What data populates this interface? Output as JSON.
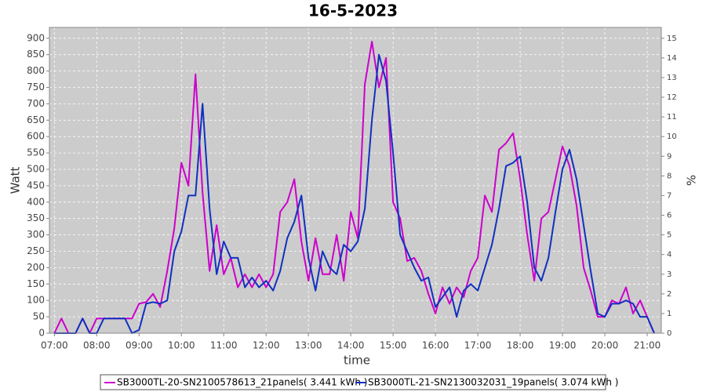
{
  "chart_data": {
    "type": "line",
    "title": "16-5-2023",
    "xlabel": "time",
    "ylabel": "Watt",
    "y2label": "%",
    "x": [
      420,
      430,
      440,
      450,
      460,
      470,
      480,
      490,
      500,
      510,
      520,
      530,
      540,
      550,
      560,
      570,
      580,
      590,
      600,
      610,
      620,
      630,
      640,
      650,
      660,
      670,
      680,
      690,
      700,
      710,
      720,
      730,
      740,
      750,
      760,
      770,
      780,
      790,
      800,
      810,
      820,
      830,
      840,
      850,
      860,
      870,
      880,
      890,
      900,
      910,
      920,
      930,
      940,
      950,
      960,
      970,
      980,
      990,
      1000,
      1010,
      1020,
      1030,
      1040,
      1050,
      1060,
      1070,
      1080,
      1090,
      1100,
      1110,
      1120,
      1130,
      1140,
      1150,
      1160,
      1170,
      1180,
      1190,
      1200,
      1210,
      1220,
      1230,
      1240,
      1250,
      1260,
      1270
    ],
    "series": [
      {
        "name": "SB3000TL-20-SN2100578613_21panels( 3.441 kWh )",
        "color": "#cc00cc",
        "values": [
          0,
          45,
          0,
          0,
          45,
          0,
          45,
          45,
          45,
          45,
          45,
          45,
          90,
          95,
          120,
          80,
          190,
          320,
          520,
          450,
          790,
          430,
          190,
          330,
          180,
          230,
          140,
          180,
          140,
          180,
          140,
          180,
          370,
          400,
          470,
          280,
          160,
          290,
          180,
          180,
          300,
          160,
          370,
          290,
          760,
          890,
          750,
          840,
          400,
          350,
          220,
          230,
          190,
          120,
          60,
          140,
          90,
          140,
          110,
          190,
          230,
          420,
          370,
          560,
          580,
          610,
          470,
          300,
          160,
          350,
          370,
          470,
          570,
          510,
          390,
          200,
          130,
          50,
          50,
          100,
          90,
          140,
          60,
          100,
          50,
          0
        ]
      },
      {
        "name": "SB3000TL-21-SN2130032031_19panels( 3.074 kWh )",
        "color": "#1030c0",
        "values": [
          0,
          0,
          0,
          0,
          45,
          0,
          0,
          45,
          45,
          45,
          45,
          0,
          10,
          90,
          95,
          90,
          100,
          250,
          310,
          420,
          420,
          700,
          380,
          180,
          280,
          230,
          230,
          140,
          170,
          140,
          160,
          130,
          190,
          290,
          340,
          420,
          230,
          130,
          250,
          200,
          180,
          270,
          250,
          280,
          380,
          650,
          850,
          770,
          550,
          300,
          250,
          200,
          160,
          170,
          80,
          110,
          140,
          50,
          130,
          150,
          130,
          200,
          270,
          380,
          510,
          520,
          540,
          400,
          200,
          160,
          230,
          370,
          500,
          560,
          470,
          330,
          190,
          60,
          50,
          90,
          90,
          100,
          90,
          50,
          50,
          0
        ]
      }
    ],
    "xlim": [
      413,
      1280
    ],
    "xticks": [
      {
        "value": 420,
        "label": "07:00"
      },
      {
        "value": 480,
        "label": "08:00"
      },
      {
        "value": 540,
        "label": "09:00"
      },
      {
        "value": 600,
        "label": "10:00"
      },
      {
        "value": 660,
        "label": "11:00"
      },
      {
        "value": 720,
        "label": "12:00"
      },
      {
        "value": 780,
        "label": "13:00"
      },
      {
        "value": 840,
        "label": "14:00"
      },
      {
        "value": 900,
        "label": "15:00"
      },
      {
        "value": 960,
        "label": "16:00"
      },
      {
        "value": 1020,
        "label": "17:00"
      },
      {
        "value": 1080,
        "label": "18:00"
      },
      {
        "value": 1140,
        "label": "19:00"
      },
      {
        "value": 1200,
        "label": "20:00"
      },
      {
        "value": 1260,
        "label": "21:00"
      }
    ],
    "ylim": [
      0,
      933
    ],
    "yticks": [
      0,
      50,
      100,
      150,
      200,
      250,
      300,
      350,
      400,
      450,
      500,
      550,
      600,
      650,
      700,
      750,
      800,
      850,
      900
    ],
    "y2lim": [
      0,
      15.55
    ],
    "y2ticks": [
      0,
      1,
      2,
      3,
      4,
      5,
      6,
      7,
      8,
      9,
      10,
      11,
      12,
      13,
      14,
      15
    ],
    "grid": true
  }
}
